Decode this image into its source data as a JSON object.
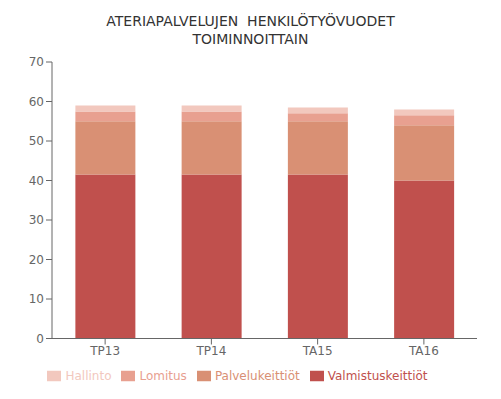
{
  "chart_data": {
    "type": "bar",
    "stacked": true,
    "title": "ATERIAPALVELUJEN  HENKILÖTYÖVUODET\nTOIMINNOITTAIN",
    "categories": [
      "TP13",
      "TP14",
      "TA15",
      "TA16"
    ],
    "series": [
      {
        "name": "Valmistuskeittiöt",
        "color": "#C0504D",
        "values": [
          41.5,
          41.5,
          41.5,
          40.0
        ]
      },
      {
        "name": "Palvelukeittiöt",
        "color": "#D99074",
        "values": [
          13.5,
          13.5,
          13.5,
          14.0
        ]
      },
      {
        "name": "Lomitus",
        "color": "#E8A090",
        "values": [
          2.5,
          2.5,
          2.0,
          2.5
        ]
      },
      {
        "name": "Hallinto",
        "color": "#F2C8BE",
        "values": [
          1.5,
          1.5,
          1.5,
          1.5
        ]
      }
    ],
    "ylim": [
      0,
      70
    ],
    "yticks": [
      0,
      10,
      20,
      30,
      40,
      50,
      60,
      70
    ],
    "grid": false,
    "legend": "bottom"
  }
}
